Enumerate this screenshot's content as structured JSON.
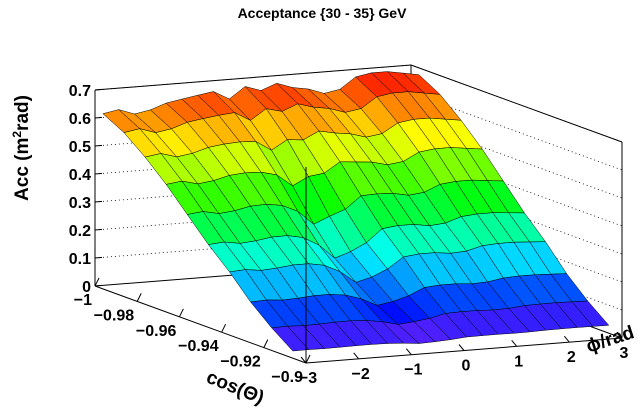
{
  "chart_data": {
    "type": "surface",
    "title": "Acceptance {30 - 35} GeV",
    "z_axis": {
      "label_prefix": "Acc (m",
      "label_sup": "2",
      "label_suffix": "rad)",
      "range": [
        0,
        0.7
      ],
      "ticks": [
        "0",
        "0.1",
        "0.2",
        "0.3",
        "0.4",
        "0.5",
        "0.6",
        "0.7"
      ]
    },
    "cos_axis": {
      "label": "cos(Θ)",
      "range": [
        -1,
        -0.9
      ],
      "ticks": [
        "−1",
        "−0.98",
        "−0.96",
        "−0.94",
        "−0.92",
        "−0.9"
      ]
    },
    "phi_axis": {
      "label": "ϕ/rad",
      "range": [
        -3,
        3
      ],
      "ticks": [
        "−3",
        "−2",
        "−1",
        "0",
        "1",
        "2",
        "3"
      ]
    },
    "grid": true,
    "palette": "rainbow",
    "cos_values": [
      -0.995,
      -0.985,
      -0.975,
      -0.965,
      -0.955,
      -0.945,
      -0.935,
      -0.925,
      -0.915,
      -0.905
    ],
    "phi_values": [
      -3.05,
      -2.75,
      -2.45,
      -2.15,
      -1.85,
      -1.55,
      -1.25,
      -0.95,
      -0.65,
      -0.35,
      -0.05,
      0.25,
      0.55,
      0.85,
      1.15,
      1.45,
      1.75,
      2.05,
      2.35,
      2.65,
      2.95
    ],
    "profile_vs_cos": [
      0.63,
      0.59,
      0.53,
      0.46,
      0.38,
      0.3,
      0.23,
      0.15,
      0.085,
      0.03
    ],
    "peak_row_phi": [
      0.63,
      0.64,
      0.62,
      0.63,
      0.65,
      0.66,
      0.67,
      0.68,
      0.65,
      0.69,
      0.67,
      0.69,
      0.67,
      0.66,
      0.64,
      0.65,
      0.69,
      0.7,
      0.7,
      0.69,
      0.68
    ],
    "dip_center_phi": -0.5,
    "dip_width": 0.6,
    "dip_depth": 0.1
  }
}
